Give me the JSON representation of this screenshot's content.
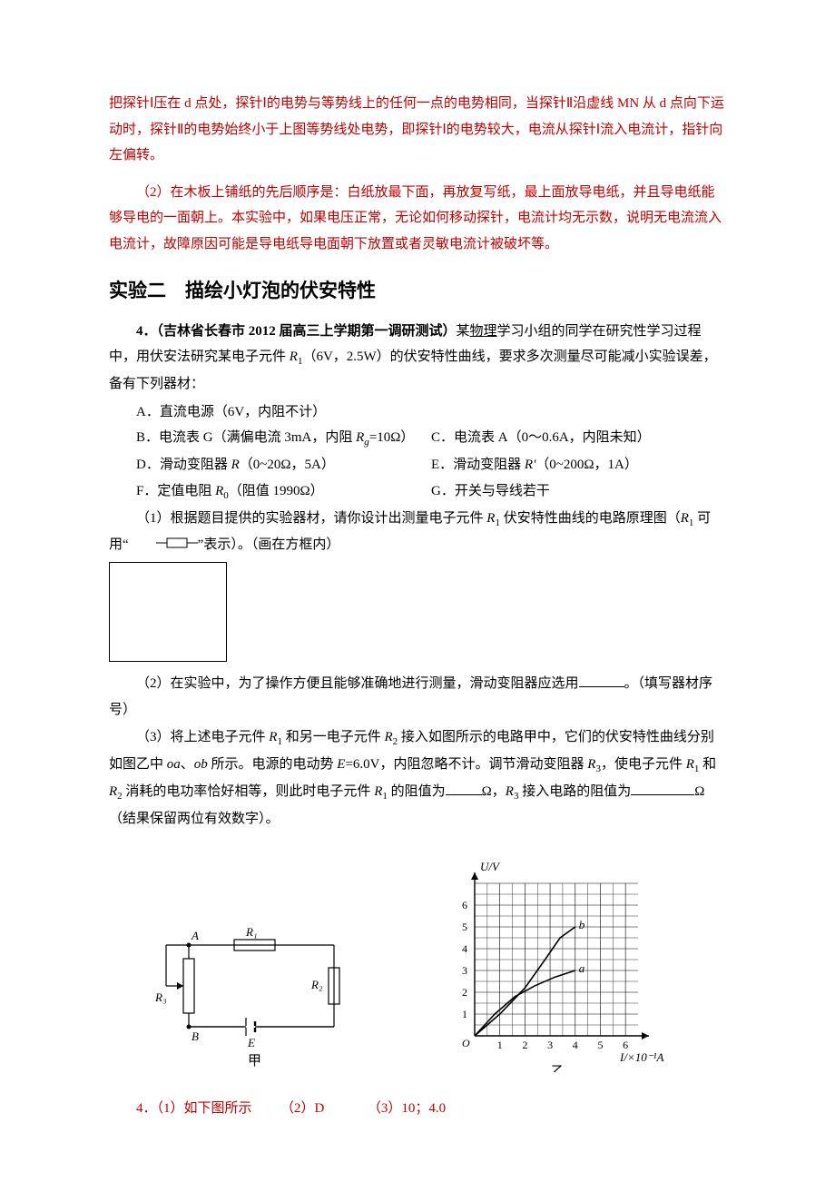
{
  "answer_prev": {
    "p1": "把探针Ⅰ压在 d 点处，探针Ⅰ的电势与等势线上的任何一点的电势相同，当探针Ⅱ沿虚线 MN 从 d 点向下运动时，探针Ⅱ的电势始终小于上图等势线处电势，即探针Ⅰ的电势较大，电流从探针Ⅰ流入电流计，指针向左偏转。",
    "p2": "（2）在木板上铺纸的先后顺序是：白纸放最下面，再放复写纸，最上面放导电纸，并且导电纸能够导电的一面朝上。本实验中，如果电压正常，无论如何移动探针，电流计均无示数，说明无电流流入电流计，故障原因可能是导电纸导电面朝下放置或者灵敏电流计被破坏等。"
  },
  "exp2_title": "实验二　描绘小灯泡的伏安特性",
  "q4": {
    "lead_bold": "4．（吉林省长春市 2012 届高三上学期第一调研测试）",
    "lead_rest_a": "某",
    "lead_underline": "物理",
    "lead_rest_b": "学习小组的同学在研究性学习过程中，用伏安法研究某电子元件 ",
    "r1": "R",
    "r1sub": "1",
    "lead_rest_c": "（6V，2.5W）的伏安特性曲线，要求多次测量尽可能减小实验误差，备有下列器材：",
    "A": "A．直流电源（6V，内阻不计）",
    "B": "B．电流表 G（满偏电流 3mA，内阻 ",
    "B_rg": "R",
    "B_rg_sub": "g",
    "B_tail": "=10Ω）",
    "C": "C．电流表 A（0～0.6A，内阻未知）",
    "D_a": "D．滑动变阻器 ",
    "D_r": "R",
    "D_b": "（0~20Ω，5A）",
    "E_a": "E．滑动变阻器 ",
    "E_r": "R'",
    "E_b": "（0~200Ω，1A）",
    "F_a": "F．定值电阻 ",
    "F_r": "R",
    "F_sub": "0",
    "F_b": "（阻值 1990Ω）",
    "G": "G．开关与导线若干",
    "sub1_a": "（1）根据题目提供的实验器材，请你设计出测量电子元件 ",
    "sub1_b": " 伏安特性曲线的电路原理图（",
    "sub1_c": " 可用“",
    "sub1_d": "”表示）。（画在方框内）",
    "sub2": "（2）在实验中，为了操作方便且能够准确地进行测量，滑动变阻器应选用",
    "sub2_tail": "。（填写器材序号）",
    "sub3_a": "（3）将上述电子元件 ",
    "sub3_b": " 和另一电子元件 ",
    "sub3_r2": "R",
    "sub3_r2sub": "2",
    "sub3_c": " 接入如图所示的电路甲中，它们的伏安特性曲线分别如图乙中 ",
    "sub3_oa": "oa",
    "sub3_d1": "、",
    "sub3_ob": "ob",
    "sub3_e": " 所示。电源的电动势 ",
    "sub3_E": "E",
    "sub3_f": "=6.0V，内阻忽略不计。调节滑动变阻器 ",
    "sub3_r3": "R",
    "sub3_r3sub": "3",
    "sub3_g": "，使电子元件 ",
    "sub3_h": " 和 ",
    "sub3_i": " 消耗的电功率恰好相等，则此时电子元件 ",
    "sub3_j": " 的阻值为",
    "sub3_k": "Ω，",
    "sub3_l": " 接入电路的阻值为",
    "sub3_m": "Ω（结果保留两位有效数字）。"
  },
  "circuit": {
    "labels": {
      "A": "A",
      "B": "B",
      "R1": "R₁",
      "R2": "R₂",
      "R3": "R₃",
      "E": "E",
      "cap": "甲"
    },
    "color": "#000000"
  },
  "chart": {
    "type": "line",
    "title_y": "U/V",
    "title_x": "I/×10⁻¹A",
    "xlim": [
      0,
      6.5
    ],
    "ylim": [
      0,
      7
    ],
    "xtick_step": 1,
    "ytick_step": 1,
    "xticks": [
      "1",
      "2",
      "3",
      "4",
      "5",
      "6"
    ],
    "yticks": [
      "1",
      "2",
      "3",
      "4",
      "5",
      "6"
    ],
    "grid_color": "#000000",
    "background_color": "#ffffff",
    "series": {
      "oa": {
        "label": "a",
        "points": [
          [
            0,
            0
          ],
          [
            0.8,
            1.0
          ],
          [
            1.6,
            1.8
          ],
          [
            2.4,
            2.3
          ],
          [
            3.2,
            2.7
          ],
          [
            4.0,
            3.0
          ]
        ]
      },
      "ob": {
        "label": "b",
        "points": [
          [
            0,
            0
          ],
          [
            1.0,
            1.0
          ],
          [
            2.0,
            2.2
          ],
          [
            2.8,
            3.5
          ],
          [
            3.4,
            4.5
          ],
          [
            4.0,
            5.0
          ]
        ]
      }
    },
    "cap": "乙",
    "origin": "O"
  },
  "ans4": {
    "a": "4．（1）如下图所示",
    "b": "（2）D",
    "c": "（3）10；4.0"
  }
}
